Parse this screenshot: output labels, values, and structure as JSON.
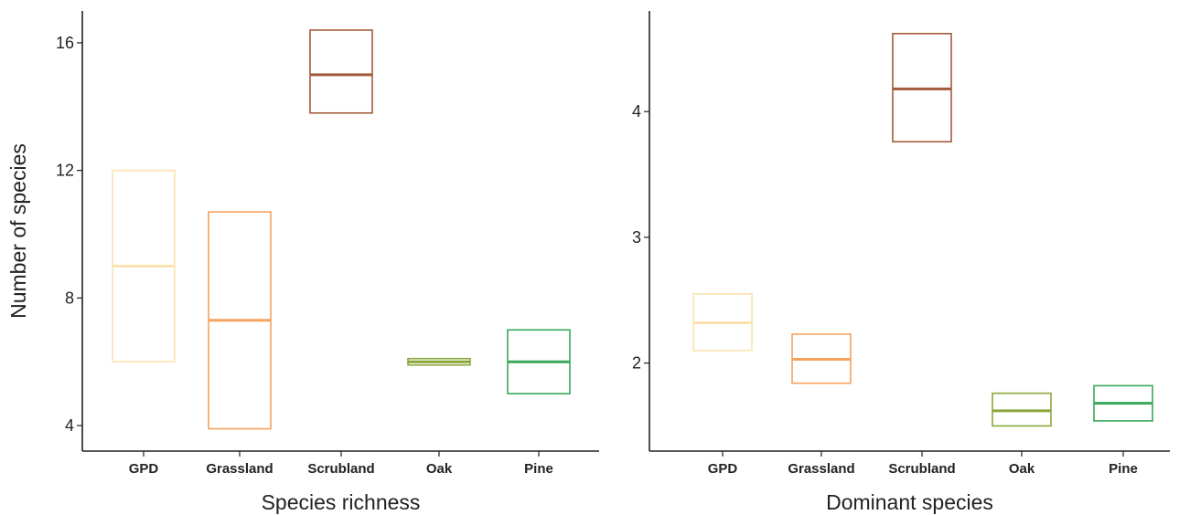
{
  "chart_data": [
    {
      "type": "box",
      "xlabel": "Species richness",
      "ylabel": "Number of species",
      "categories": [
        "GPD",
        "Grassland",
        "Scrubland",
        "Oak",
        "Pine"
      ],
      "ylim": [
        3.2,
        17.0
      ],
      "yticks": [
        4,
        8,
        12,
        16
      ],
      "grid": false,
      "boxes": [
        {
          "category": "GPD",
          "q1": 6.0,
          "median": 9.0,
          "q3": 12.0,
          "color": "#fbe3b0"
        },
        {
          "category": "Grassland",
          "q1": 3.9,
          "median": 7.3,
          "q3": 10.7,
          "color": "#f5a25d"
        },
        {
          "category": "Scrubland",
          "q1": 13.8,
          "median": 15.0,
          "q3": 16.4,
          "color": "#a35a3a"
        },
        {
          "category": "Oak",
          "q1": 5.9,
          "median": 6.0,
          "q3": 6.1,
          "color": "#8aa63a"
        },
        {
          "category": "Pine",
          "q1": 5.0,
          "median": 6.0,
          "q3": 7.0,
          "color": "#3aa85a"
        }
      ]
    },
    {
      "type": "box",
      "xlabel": "Dominant species",
      "ylabel": "",
      "categories": [
        "GPD",
        "Grassland",
        "Scrubland",
        "Oak",
        "Pine"
      ],
      "ylim": [
        1.3,
        4.8
      ],
      "yticks": [
        2,
        3,
        4
      ],
      "grid": false,
      "boxes": [
        {
          "category": "GPD",
          "q1": 2.1,
          "median": 2.32,
          "q3": 2.55,
          "color": "#fbe3b0"
        },
        {
          "category": "Grassland",
          "q1": 1.84,
          "median": 2.03,
          "q3": 2.23,
          "color": "#f5a25d"
        },
        {
          "category": "Scrubland",
          "q1": 3.76,
          "median": 4.18,
          "q3": 4.62,
          "color": "#a35a3a"
        },
        {
          "category": "Oak",
          "q1": 1.5,
          "median": 1.62,
          "q3": 1.76,
          "color": "#8aa63a"
        },
        {
          "category": "Pine",
          "q1": 1.54,
          "median": 1.68,
          "q3": 1.82,
          "color": "#3aa85a"
        }
      ]
    }
  ]
}
